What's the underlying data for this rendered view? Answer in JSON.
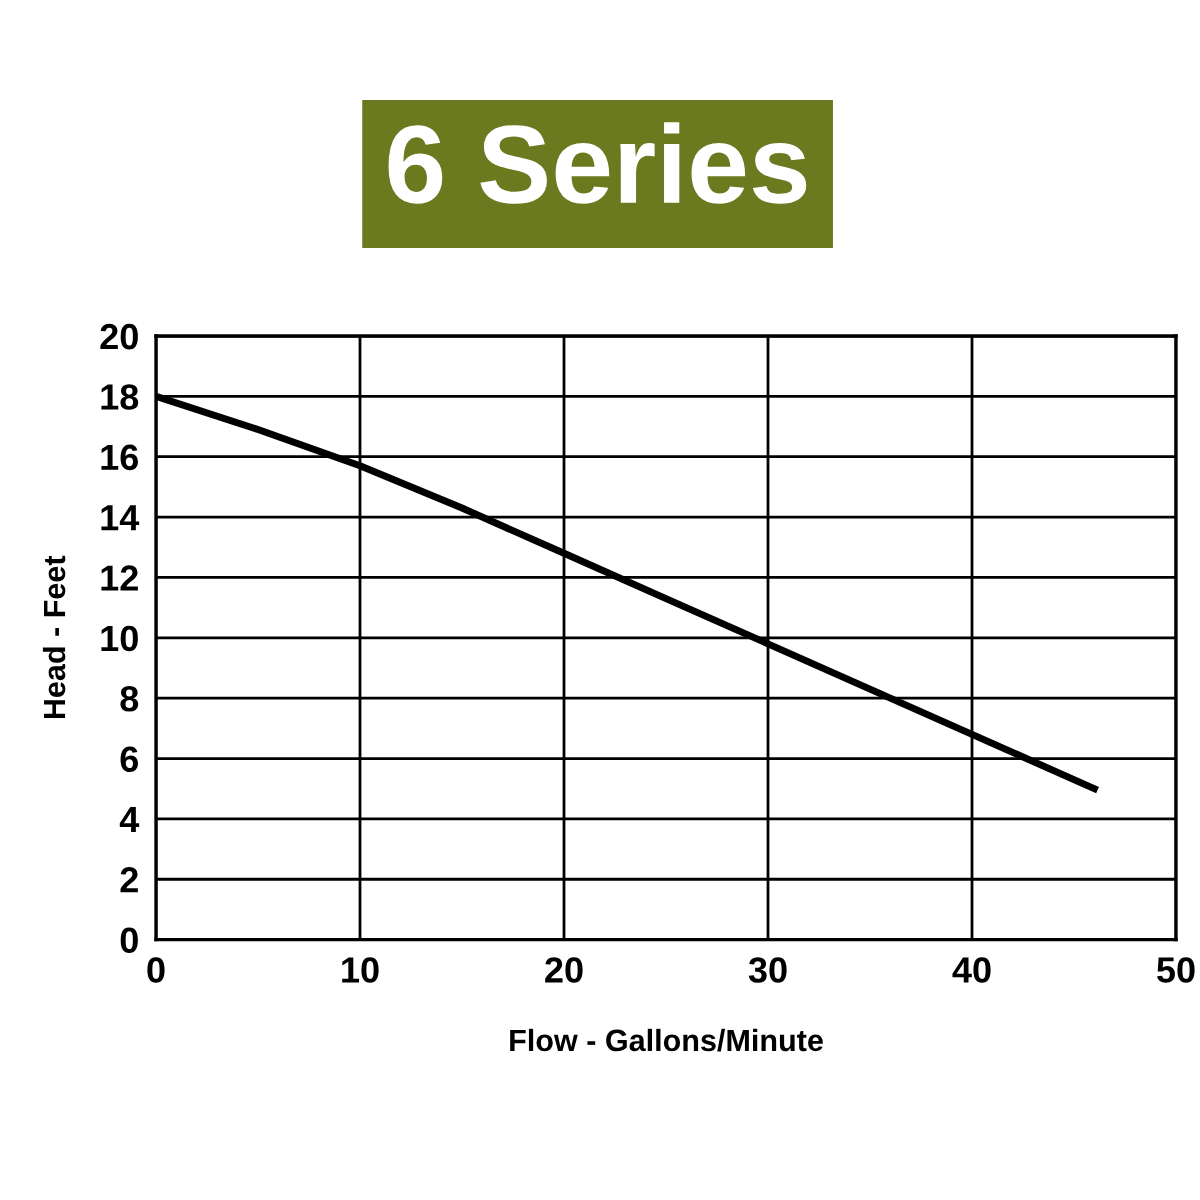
{
  "chart_data": {
    "type": "line",
    "title": "6 Series",
    "xlabel": "Flow - Gallons/Minute",
    "ylabel": "Head - Feet",
    "x": [
      0,
      5,
      10,
      15,
      20,
      25,
      30,
      35,
      40,
      46
    ],
    "series": [
      {
        "color": "#000000",
        "values": [
          18,
          16.9,
          15.7,
          14.3,
          12.8,
          11.3,
          9.8,
          8.3,
          6.8,
          5.0
        ]
      }
    ],
    "xlim": [
      0,
      50
    ],
    "xticks": [
      0,
      10,
      20,
      30,
      40,
      50
    ],
    "ylim": [
      0,
      20
    ],
    "yticks": [
      0,
      2,
      4,
      6,
      8,
      10,
      12,
      14,
      16,
      18,
      20
    ],
    "grid": true,
    "marker": "none",
    "line_style": "solid"
  }
}
